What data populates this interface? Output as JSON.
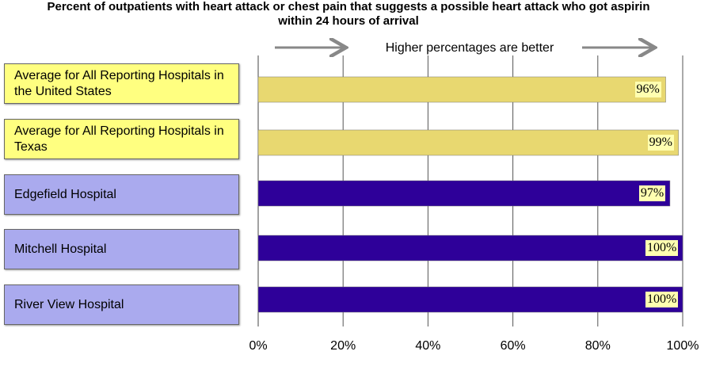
{
  "chart_data": {
    "type": "bar",
    "title": "Percent of outpatients with heart attack or chest pain that suggests a possible heart attack who got aspirin within 24 hours of arrival",
    "annotation": "Higher percentages are better",
    "categories": [
      "Average for All Reporting Hospitals in the United States",
      "Average for All Reporting Hospitals in Texas",
      "Edgefield Hospital",
      "Mitchell Hospital",
      "River View Hospital"
    ],
    "values": [
      96,
      99,
      97,
      100,
      100
    ],
    "value_labels": [
      "96%",
      "99%",
      "97%",
      "100%",
      "100%"
    ],
    "colors": [
      "#e8d870",
      "#e8d870",
      "#2e0099",
      "#2e0099",
      "#2e0099"
    ],
    "label_colors": [
      "#ffff80",
      "#ffff80",
      "#aaaaee",
      "#aaaaee",
      "#aaaaee"
    ],
    "xlim": [
      0,
      100
    ],
    "xticks": [
      {
        "value": 0,
        "label": "0%"
      },
      {
        "value": 20,
        "label": "20%"
      },
      {
        "value": 40,
        "label": "40%"
      },
      {
        "value": 60,
        "label": "60%"
      },
      {
        "value": 80,
        "label": "80%"
      },
      {
        "value": 100,
        "label": "100%"
      }
    ],
    "grid": true
  }
}
